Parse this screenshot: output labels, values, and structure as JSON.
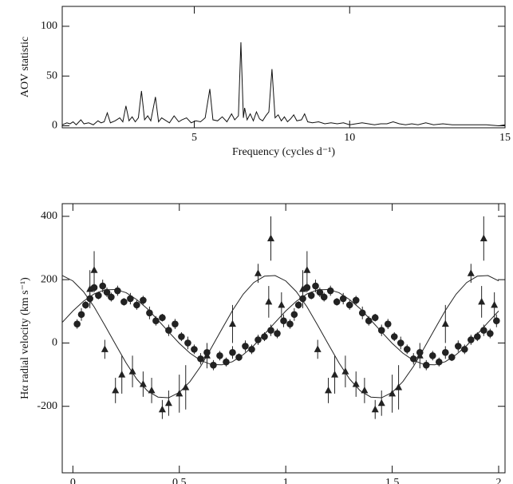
{
  "chart_data": [
    {
      "type": "line",
      "x_label": "Frequency (cycles d⁻¹)",
      "y_label": "AOV statistic",
      "color": "#111111",
      "xlim": [
        0.75,
        15
      ],
      "xticks": [
        5,
        10,
        15
      ],
      "ylim": [
        -2,
        120
      ],
      "yticks": [
        0,
        50,
        100
      ],
      "x": [
        0.75,
        0.9,
        1.0,
        1.1,
        1.2,
        1.35,
        1.45,
        1.6,
        1.75,
        1.9,
        2.0,
        2.1,
        2.2,
        2.3,
        2.45,
        2.6,
        2.7,
        2.8,
        2.9,
        3.0,
        3.1,
        3.2,
        3.3,
        3.4,
        3.5,
        3.6,
        3.75,
        3.85,
        3.95,
        4.1,
        4.2,
        4.35,
        4.5,
        4.6,
        4.75,
        4.9,
        5.05,
        5.2,
        5.35,
        5.5,
        5.6,
        5.75,
        5.9,
        6.05,
        6.2,
        6.3,
        6.42,
        6.5,
        6.58,
        6.62,
        6.7,
        6.8,
        6.9,
        7.0,
        7.1,
        7.2,
        7.3,
        7.4,
        7.5,
        7.6,
        7.7,
        7.8,
        7.9,
        8.0,
        8.1,
        8.2,
        8.3,
        8.45,
        8.55,
        8.65,
        8.8,
        9.0,
        9.2,
        9.4,
        9.6,
        9.8,
        10.0,
        10.2,
        10.4,
        10.6,
        10.8,
        11.0,
        11.2,
        11.4,
        11.6,
        11.8,
        12.0,
        12.2,
        12.45,
        12.7,
        13.0,
        13.3,
        13.6,
        14.0,
        14.4,
        14.8,
        15
      ],
      "values": [
        1,
        3,
        2,
        4,
        1,
        6,
        2,
        3,
        1,
        5,
        3,
        4,
        13,
        3,
        5,
        8,
        4,
        20,
        5,
        9,
        4,
        8,
        35,
        6,
        10,
        5,
        29,
        4,
        8,
        5,
        3,
        10,
        4,
        6,
        8,
        3,
        5,
        4,
        8,
        37,
        6,
        5,
        9,
        4,
        12,
        6,
        10,
        84,
        8,
        18,
        6,
        12,
        5,
        14,
        7,
        5,
        10,
        14,
        57,
        8,
        11,
        5,
        9,
        4,
        7,
        11,
        5,
        6,
        12,
        4,
        3,
        4,
        2,
        3,
        2,
        3,
        1,
        2,
        3,
        2,
        1,
        2,
        2,
        4,
        2,
        1,
        2,
        1,
        3,
        1,
        2,
        1,
        1,
        1,
        1,
        0,
        1
      ]
    },
    {
      "type": "scatter",
      "x_label": "Orbital phase",
      "y_label": "Hα radial velocity (km s⁻¹)",
      "color": "#222222",
      "xlim": [
        -0.05,
        2.03
      ],
      "xticks": [
        0,
        0.5,
        1,
        1.5,
        2
      ],
      "ylim": [
        -410,
        440
      ],
      "yticks": [
        -200,
        0,
        200,
        400
      ],
      "series": [
        {
          "marker": "circle",
          "x": [
            0.02,
            0.04,
            0.06,
            0.08,
            0.1,
            0.12,
            0.14,
            0.16,
            0.18,
            0.21,
            0.24,
            0.27,
            0.3,
            0.33,
            0.36,
            0.39,
            0.42,
            0.45,
            0.48,
            0.51,
            0.54,
            0.57,
            0.6,
            0.63,
            0.66,
            0.69,
            0.72,
            0.75,
            0.78,
            0.81,
            0.84,
            0.87,
            0.9,
            0.93,
            0.96,
            0.99,
            1.02,
            1.04,
            1.06,
            1.08,
            1.1,
            1.12,
            1.14,
            1.16,
            1.18,
            1.21,
            1.24,
            1.27,
            1.3,
            1.33,
            1.36,
            1.39,
            1.42,
            1.45,
            1.48,
            1.51,
            1.54,
            1.57,
            1.6,
            1.63,
            1.66,
            1.69,
            1.72,
            1.75,
            1.78,
            1.81,
            1.84,
            1.87,
            1.9,
            1.93,
            1.96,
            1.99
          ],
          "values": [
            60,
            90,
            120,
            140,
            175,
            150,
            180,
            160,
            145,
            165,
            130,
            140,
            120,
            135,
            95,
            70,
            80,
            40,
            60,
            20,
            0,
            -20,
            -50,
            -30,
            -70,
            -40,
            -60,
            -30,
            -45,
            -10,
            -20,
            10,
            20,
            40,
            30,
            70,
            60,
            90,
            120,
            140,
            175,
            150,
            180,
            160,
            145,
            165,
            130,
            140,
            120,
            135,
            95,
            70,
            80,
            40,
            60,
            20,
            0,
            -20,
            -50,
            -30,
            -70,
            -40,
            -60,
            -30,
            -45,
            -10,
            -20,
            10,
            20,
            40,
            30,
            70
          ],
          "errors": [
            15,
            20,
            12,
            18,
            15,
            12,
            20,
            15,
            14,
            16,
            12,
            18,
            15,
            14,
            20,
            15,
            12,
            18,
            16,
            14,
            20,
            15,
            18,
            12,
            16,
            15,
            14,
            20,
            12,
            18,
            15,
            16,
            14,
            18,
            15,
            20,
            15,
            20,
            12,
            18,
            15,
            12,
            20,
            15,
            14,
            16,
            12,
            18,
            15,
            14,
            20,
            15,
            12,
            18,
            16,
            14,
            20,
            15,
            18,
            12,
            16,
            15,
            14,
            20,
            12,
            18,
            15,
            16,
            14,
            18,
            15,
            20
          ]
        },
        {
          "marker": "triangle",
          "x": [
            0.08,
            0.1,
            0.15,
            0.2,
            0.23,
            0.28,
            0.33,
            0.37,
            0.42,
            0.45,
            0.5,
            0.53,
            0.63,
            0.75,
            0.87,
            0.92,
            0.93,
            0.98,
            1.08,
            1.1,
            1.15,
            1.2,
            1.23,
            1.28,
            1.33,
            1.37,
            1.42,
            1.45,
            1.5,
            1.53,
            1.63,
            1.75,
            1.87,
            1.92,
            1.93,
            1.98
          ],
          "values": [
            170,
            230,
            -20,
            -150,
            -100,
            -90,
            -130,
            -150,
            -210,
            -190,
            -160,
            -140,
            -40,
            60,
            220,
            130,
            330,
            120,
            170,
            230,
            -20,
            -150,
            -100,
            -90,
            -130,
            -150,
            -210,
            -190,
            -160,
            -140,
            -40,
            60,
            220,
            130,
            330,
            120
          ],
          "errors": [
            60,
            60,
            30,
            40,
            60,
            50,
            40,
            40,
            30,
            40,
            60,
            70,
            40,
            60,
            30,
            50,
            70,
            40,
            60,
            60,
            30,
            40,
            60,
            50,
            40,
            40,
            30,
            40,
            60,
            70,
            40,
            60,
            30,
            50,
            70,
            40
          ]
        }
      ],
      "curve_x": [
        -0.05,
        0,
        0.05,
        0.1,
        0.15,
        0.2,
        0.25,
        0.3,
        0.35,
        0.4,
        0.45,
        0.5,
        0.55,
        0.6,
        0.65,
        0.7,
        0.75,
        0.8,
        0.85,
        0.9,
        0.95,
        1,
        1.05,
        1.1,
        1.15,
        1.2,
        1.25,
        1.3,
        1.35,
        1.4,
        1.45,
        1.5,
        1.55,
        1.6,
        1.65,
        1.7,
        1.75,
        1.8,
        1.85,
        1.9,
        1.95,
        2
      ],
      "curves": [
        {
          "values": [
            213,
            196,
            162,
            114,
            56,
            -4,
            -63,
            -114,
            -151,
            -171,
            -173,
            -156,
            -122,
            -74,
            -16,
            44,
            103,
            154,
            191,
            211,
            213,
            196,
            162,
            114,
            56,
            -4,
            -63,
            -114,
            -151,
            -171,
            -173,
            -156,
            -122,
            -74,
            -16,
            44,
            103,
            154,
            191,
            211,
            213,
            196
          ]
        },
        {
          "values": [
            65,
            101,
            132,
            155,
            168,
            169,
            159,
            137,
            108,
            72,
            35,
            -1,
            -32,
            -55,
            -68,
            -69,
            -59,
            -37,
            -8,
            28,
            65,
            101,
            132,
            155,
            168,
            169,
            159,
            137,
            108,
            72,
            35,
            -1,
            -32,
            -55,
            -68,
            -69,
            -59,
            -37,
            -8,
            28,
            65,
            101
          ]
        }
      ]
    }
  ]
}
